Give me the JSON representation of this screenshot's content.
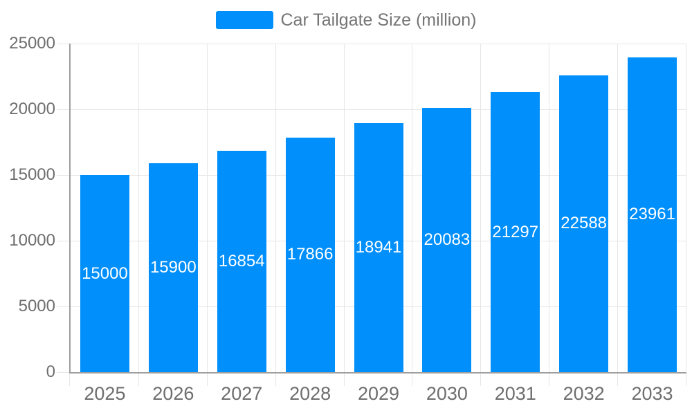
{
  "chart_data": {
    "type": "bar",
    "title": "Car Tailgate Size (million)",
    "categories": [
      "2025",
      "2026",
      "2027",
      "2028",
      "2029",
      "2030",
      "2031",
      "2032",
      "2033"
    ],
    "series": [
      {
        "name": "Car Tailgate Size (million)",
        "values": [
          15000,
          15900,
          16854,
          17866,
          18941,
          20083,
          21297,
          22588,
          23961
        ]
      }
    ],
    "xlabel": "",
    "ylabel": "",
    "ylim": [
      0,
      25000
    ],
    "yticks": [
      0,
      5000,
      10000,
      15000,
      20000,
      25000
    ],
    "grid": true,
    "legend_position": "top",
    "value_label_position": "inside-center",
    "colors": {
      "bar": "#008FFB",
      "grid": "#e6e6e6",
      "tick": "#e6e6e6",
      "axis": "#9e9e9e",
      "axis_label": "#6e6e6e",
      "legend_text": "#757575",
      "value_label": "#ffffff",
      "background": "#ffffff"
    }
  }
}
